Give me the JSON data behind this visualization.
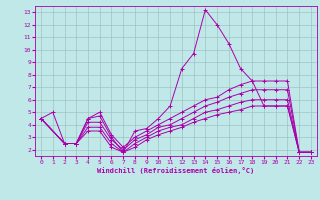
{
  "xlabel": "Windchill (Refroidissement éolien,°C)",
  "bg_color": "#c0e8e8",
  "line_color": "#aa00aa",
  "grid_color": "#99bbbb",
  "xlim": [
    -0.5,
    23.5
  ],
  "ylim": [
    1.5,
    13.5
  ],
  "xticks": [
    0,
    1,
    2,
    3,
    4,
    5,
    6,
    7,
    8,
    9,
    10,
    11,
    12,
    13,
    14,
    15,
    16,
    17,
    18,
    19,
    20,
    21,
    22,
    23
  ],
  "yticks": [
    2,
    3,
    4,
    5,
    6,
    7,
    8,
    9,
    10,
    11,
    12,
    13
  ],
  "lines": [
    [
      0,
      4.5,
      1,
      5.0,
      2,
      2.5,
      3,
      2.5,
      4,
      4.5,
      5,
      4.7,
      6,
      3.0,
      7,
      1.8,
      8,
      3.5,
      9,
      3.7,
      10,
      4.5,
      11,
      5.5,
      12,
      8.5,
      13,
      9.7,
      14,
      13.2,
      15,
      12.0,
      16,
      10.5,
      17,
      8.5,
      18,
      7.5,
      19,
      5.5,
      20,
      5.5,
      21,
      5.5,
      22,
      1.8,
      23,
      1.8
    ],
    [
      0,
      4.5,
      2,
      2.5,
      3,
      2.5,
      4,
      4.5,
      5,
      5.0,
      6,
      3.2,
      7,
      2.2,
      8,
      3.0,
      9,
      3.5,
      10,
      4.0,
      11,
      4.5,
      12,
      5.0,
      13,
      5.5,
      14,
      6.0,
      15,
      6.2,
      16,
      6.8,
      17,
      7.2,
      18,
      7.5,
      19,
      7.5,
      20,
      7.5,
      21,
      7.5,
      22,
      1.8,
      23,
      1.8
    ],
    [
      0,
      4.5,
      2,
      2.5,
      3,
      2.5,
      4,
      4.2,
      5,
      4.2,
      6,
      2.8,
      7,
      2.0,
      8,
      2.8,
      9,
      3.2,
      10,
      3.8,
      11,
      4.0,
      12,
      4.5,
      13,
      5.0,
      14,
      5.5,
      15,
      5.8,
      16,
      6.2,
      17,
      6.5,
      18,
      6.8,
      19,
      6.8,
      20,
      6.8,
      21,
      6.8,
      22,
      1.8,
      23,
      1.8
    ],
    [
      0,
      4.5,
      2,
      2.5,
      3,
      2.5,
      4,
      3.8,
      5,
      3.8,
      6,
      2.5,
      7,
      1.8,
      8,
      2.5,
      9,
      3.0,
      10,
      3.5,
      11,
      3.8,
      12,
      4.0,
      13,
      4.5,
      14,
      5.0,
      15,
      5.2,
      16,
      5.5,
      17,
      5.8,
      18,
      6.0,
      19,
      6.0,
      20,
      6.0,
      21,
      6.0,
      22,
      1.8,
      23,
      1.8
    ],
    [
      0,
      4.5,
      2,
      2.5,
      3,
      2.5,
      4,
      3.5,
      5,
      3.5,
      6,
      2.2,
      7,
      1.8,
      8,
      2.2,
      9,
      2.8,
      10,
      3.2,
      11,
      3.5,
      12,
      3.8,
      13,
      4.2,
      14,
      4.5,
      15,
      4.8,
      16,
      5.0,
      17,
      5.2,
      18,
      5.5,
      19,
      5.5,
      20,
      5.5,
      21,
      5.5,
      22,
      1.8,
      23,
      1.8
    ]
  ]
}
